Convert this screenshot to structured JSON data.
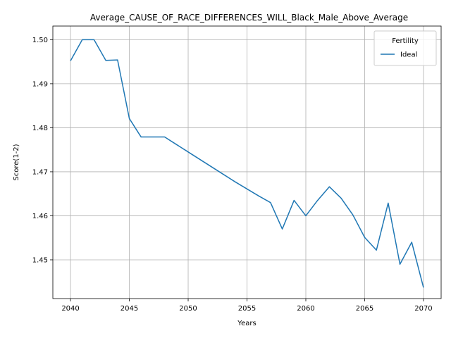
{
  "chart_data": {
    "type": "line",
    "title": "Average_CAUSE_OF_RACE_DIFFERENCES_WILL_Black_Male_Above_Average",
    "xlabel": "Years",
    "ylabel": "Score(1-2)",
    "xlim": [
      2038.5,
      2071.5
    ],
    "ylim": [
      1.4412,
      1.5031
    ],
    "xticks": [
      2040,
      2045,
      2050,
      2055,
      2060,
      2065,
      2070
    ],
    "yticks": [
      1.45,
      1.46,
      1.47,
      1.48,
      1.49,
      1.5
    ],
    "grid": true,
    "legend": {
      "title": "Fertility",
      "placement": "top-right"
    },
    "series": [
      {
        "name": "Ideal",
        "color": "#1f77b4",
        "x": [
          2040,
          2041,
          2042,
          2043,
          2044,
          2045,
          2046,
          2047,
          2048,
          2049,
          2050,
          2051,
          2052,
          2053,
          2054,
          2055,
          2056,
          2057,
          2058,
          2059,
          2060,
          2061,
          2062,
          2063,
          2064,
          2065,
          2066,
          2067,
          2068,
          2069,
          2070
        ],
        "y": [
          1.4952,
          1.5,
          1.5,
          1.4953,
          1.4954,
          1.4821,
          1.4779,
          1.4779,
          1.4779,
          1.4762,
          1.4745,
          1.4728,
          1.4711,
          1.4694,
          1.4677,
          1.4661,
          1.4645,
          1.463,
          1.457,
          1.4635,
          1.46,
          1.4635,
          1.4666,
          1.464,
          1.4602,
          1.4551,
          1.4522,
          1.4629,
          1.449,
          1.454,
          1.4437
        ]
      }
    ]
  }
}
